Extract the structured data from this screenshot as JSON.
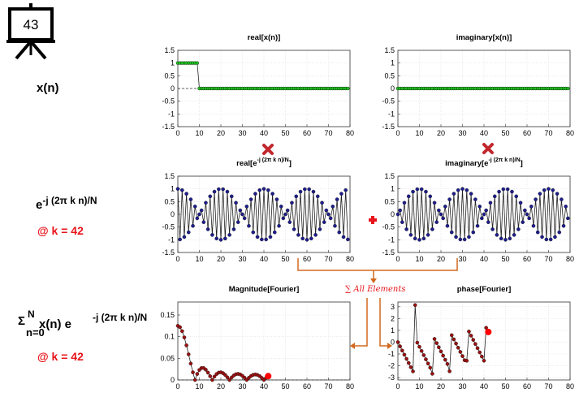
{
  "slide_number": "43",
  "rows": {
    "xn_label": "x(n)",
    "exp_label_base": "e",
    "exp_label_sup": "-j (2π k n)/N",
    "k_label": "@ k = 42",
    "sum_label_sigma": "Σ",
    "sum_label_top": "N",
    "sum_label_bottom": "n=0",
    "sum_label_body": " x(n) e",
    "sum_label_sup": "-j (2π k n)/N",
    "k_label_2": "@ k = 42"
  },
  "sum_annotation": "∑ All Elements",
  "colors": {
    "green_marker": "#1fc21f",
    "blue_marker": "#1d1d8f",
    "red_marker": "#9b1010",
    "highlight": "#ff0000",
    "arrow": "#d2691e",
    "accent_red": "#e8141b"
  },
  "chart_data": [
    {
      "id": "real-x",
      "type": "line",
      "title": "real[x(n)]",
      "xlim": [
        0,
        80
      ],
      "ylim": [
        -1.5,
        1.5
      ],
      "xticks": [
        0,
        10,
        20,
        30,
        40,
        50,
        60,
        70,
        80
      ],
      "yticks": [
        -1.5,
        -1,
        -0.5,
        0,
        0.5,
        1,
        1.5
      ],
      "grid": true,
      "series": [
        {
          "marker": "green",
          "x_start": 0,
          "x_end": 79,
          "rule": "1 for n<10, 0 otherwise"
        }
      ]
    },
    {
      "id": "imag-x",
      "type": "line",
      "title": "imaginary[x(n)]",
      "xlim": [
        0,
        80
      ],
      "ylim": [
        -1.5,
        1.5
      ],
      "xticks": [
        0,
        10,
        20,
        30,
        40,
        50,
        60,
        70,
        80
      ],
      "yticks": [
        -1.5,
        -1,
        -0.5,
        0,
        0.5,
        1,
        1.5
      ],
      "grid": true,
      "series": [
        {
          "marker": "green",
          "x_start": 0,
          "x_end": 79,
          "rule": "0 for all n"
        }
      ]
    },
    {
      "id": "real-exp",
      "type": "line",
      "title_base": "real[e",
      "title_sup": "-j (2π k n)/N",
      "title_end": "]",
      "xlim": [
        0,
        80
      ],
      "ylim": [
        -1.5,
        1.5
      ],
      "xticks": [
        0,
        10,
        20,
        30,
        40,
        50,
        60,
        70,
        80
      ],
      "yticks": [
        -1.5,
        -1,
        -0.5,
        0,
        0.5,
        1,
        1.5
      ],
      "grid": true,
      "series": [
        {
          "marker": "blue",
          "k": 42,
          "N": 80,
          "x_start": 0,
          "x_end": 79,
          "rule": "cos(2π k n / N)"
        }
      ]
    },
    {
      "id": "imag-exp",
      "type": "line",
      "title_base": "imaginary[e",
      "title_sup": "-j (2π k n)/N",
      "title_end": "]",
      "xlim": [
        0,
        80
      ],
      "ylim": [
        -1.5,
        1.5
      ],
      "xticks": [
        0,
        10,
        20,
        30,
        40,
        50,
        60,
        70,
        80
      ],
      "yticks": [
        -1.5,
        -1,
        -0.5,
        0,
        0.5,
        1,
        1.5
      ],
      "grid": true,
      "series": [
        {
          "marker": "blue",
          "k": 42,
          "N": 80,
          "x_start": 0,
          "x_end": 79,
          "rule": "-sin(2π k n / N)"
        }
      ]
    },
    {
      "id": "magnitude",
      "type": "line",
      "title": "Magnitude[Fourier]",
      "xlim": [
        0,
        80
      ],
      "ylim": [
        0,
        0.18
      ],
      "xticks": [
        0,
        10,
        20,
        30,
        40,
        50,
        60,
        70,
        80
      ],
      "yticks": [
        0,
        0.05,
        0.1,
        0.15
      ],
      "grid": true,
      "series": [
        {
          "marker": "red",
          "x_start": 0,
          "x_end": 42,
          "rule": "|X(k)|/N for 10-sample pulse",
          "highlight_x": 42
        }
      ]
    },
    {
      "id": "phase",
      "type": "line",
      "title": "phase[Fourier]",
      "xlim": [
        0,
        80
      ],
      "ylim": [
        -3.2,
        3.4
      ],
      "xticks": [
        0,
        10,
        20,
        30,
        40,
        50,
        60,
        70,
        80
      ],
      "yticks": [
        -3,
        -2,
        -1,
        0,
        1,
        2,
        3
      ],
      "grid": true,
      "series": [
        {
          "marker": "red",
          "x_start": 0,
          "x_end": 42,
          "rule": "arg X(k) for 10-sample pulse",
          "highlight_x": 42
        }
      ]
    }
  ]
}
